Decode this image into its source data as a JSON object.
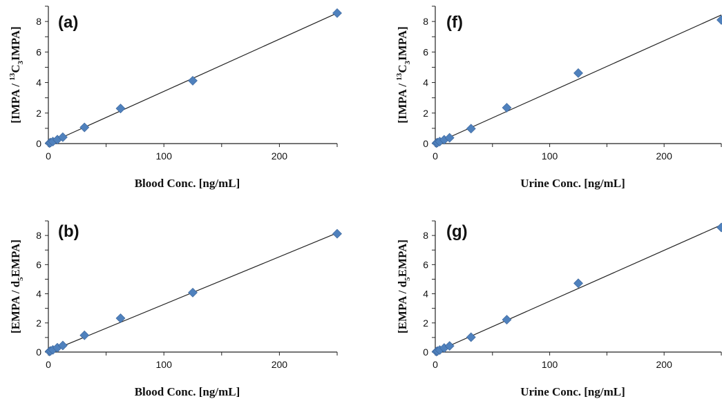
{
  "chart_data": [
    {
      "type": "scatter",
      "panel_label": "(a)",
      "xlabel": "Blood Conc. [ng/mL]",
      "ylabel": {
        "main": "[IMPA / ",
        "sup": "13",
        "base": "C",
        "sub": "3",
        "tail": "IMPA]"
      },
      "xlim": [
        0,
        250
      ],
      "ylim": [
        0,
        9
      ],
      "xticks": [
        0,
        100,
        200
      ],
      "yticks": [
        0,
        2,
        4,
        6,
        8
      ],
      "x": [
        0.98,
        1.95,
        3.9,
        7.8,
        12.5,
        31.25,
        62.5,
        125,
        250
      ],
      "y": [
        0.03,
        0.07,
        0.13,
        0.26,
        0.42,
        1.06,
        2.3,
        4.12,
        8.55
      ],
      "trendline": {
        "slope": 0.0342,
        "intercept": 0.0
      },
      "marker_color": "#4f81bd",
      "grid": false
    },
    {
      "type": "scatter",
      "panel_label": "(f)",
      "xlabel": "Urine Conc. [ng/mL]",
      "ylabel": {
        "main": "[IMPA / ",
        "sup": "13",
        "base": "C",
        "sub": "3",
        "tail": "IMPA]"
      },
      "xlim": [
        0,
        250
      ],
      "ylim": [
        0,
        9
      ],
      "xticks": [
        0,
        100,
        200
      ],
      "yticks": [
        0,
        2,
        4,
        6,
        8
      ],
      "x": [
        0.98,
        1.95,
        3.9,
        7.8,
        12.5,
        31.25,
        62.5,
        125,
        250
      ],
      "y": [
        0.03,
        0.07,
        0.13,
        0.25,
        0.38,
        0.98,
        2.35,
        4.62,
        8.1
      ],
      "trendline": {
        "slope": 0.0337,
        "intercept": 0.0
      },
      "marker_color": "#4f81bd",
      "grid": false
    },
    {
      "type": "scatter",
      "panel_label": "(b)",
      "xlabel": "Blood Conc. [ng/mL]",
      "ylabel": {
        "main": "[EMPA / d",
        "sub": "5",
        "tail": "EMPA]"
      },
      "xlim": [
        0,
        250
      ],
      "ylim": [
        0,
        9
      ],
      "xticks": [
        0,
        100,
        200
      ],
      "yticks": [
        0,
        2,
        4,
        6,
        8
      ],
      "x": [
        0.98,
        1.95,
        3.9,
        7.8,
        12.5,
        31.25,
        62.5,
        125,
        250
      ],
      "y": [
        0.04,
        0.08,
        0.15,
        0.3,
        0.45,
        1.15,
        2.32,
        4.08,
        8.12
      ],
      "trendline": {
        "slope": 0.0327,
        "intercept": 0.0
      },
      "marker_color": "#4f81bd",
      "grid": false
    },
    {
      "type": "scatter",
      "panel_label": "(g)",
      "xlabel": "Urine Conc. [ng/mL]",
      "ylabel": {
        "main": "[EMPA / d",
        "sub": "5",
        "tail": "EMPA]"
      },
      "xlim": [
        0,
        250
      ],
      "ylim": [
        0,
        9
      ],
      "xticks": [
        0,
        100,
        200
      ],
      "yticks": [
        0,
        2,
        4,
        6,
        8
      ],
      "x": [
        0.98,
        1.95,
        3.9,
        7.8,
        12.5,
        31.25,
        62.5,
        125,
        250
      ],
      "y": [
        0.03,
        0.07,
        0.14,
        0.28,
        0.42,
        1.02,
        2.22,
        4.72,
        8.55
      ],
      "trendline": {
        "slope": 0.0349,
        "intercept": 0.0
      },
      "marker_color": "#4f81bd",
      "grid": false
    }
  ]
}
